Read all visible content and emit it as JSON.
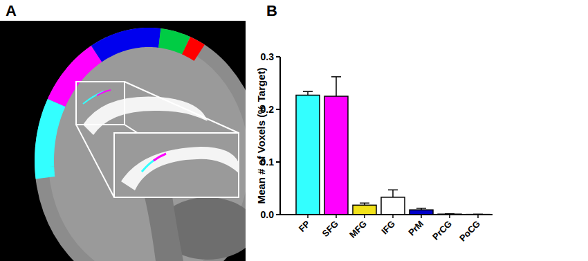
{
  "panel_labels": [
    "A",
    "B"
  ],
  "chart_data": {
    "type": "bar",
    "y_label": "Mean # of Voxels (% Target)",
    "categories": [
      "FP",
      "SFG",
      "MFG",
      "IFG",
      "PrM",
      "PrCG",
      "PoCG"
    ],
    "values": [
      0.227,
      0.225,
      0.018,
      0.033,
      0.009,
      0.001,
      0.0005
    ],
    "errors": [
      0.007,
      0.037,
      0.004,
      0.014,
      0.003,
      0.0005,
      0.0003
    ],
    "colors": [
      "#33ffff",
      "#ff00ff",
      "#f2e21a",
      "#ffffff",
      "#0000cc",
      "#00cc44",
      "#ff0000"
    ],
    "ylim": [
      0,
      0.3
    ],
    "yticks": [
      {
        "value": 0,
        "label": "0.0"
      },
      0.1,
      0.2,
      0.3
    ],
    "grid": false
  }
}
